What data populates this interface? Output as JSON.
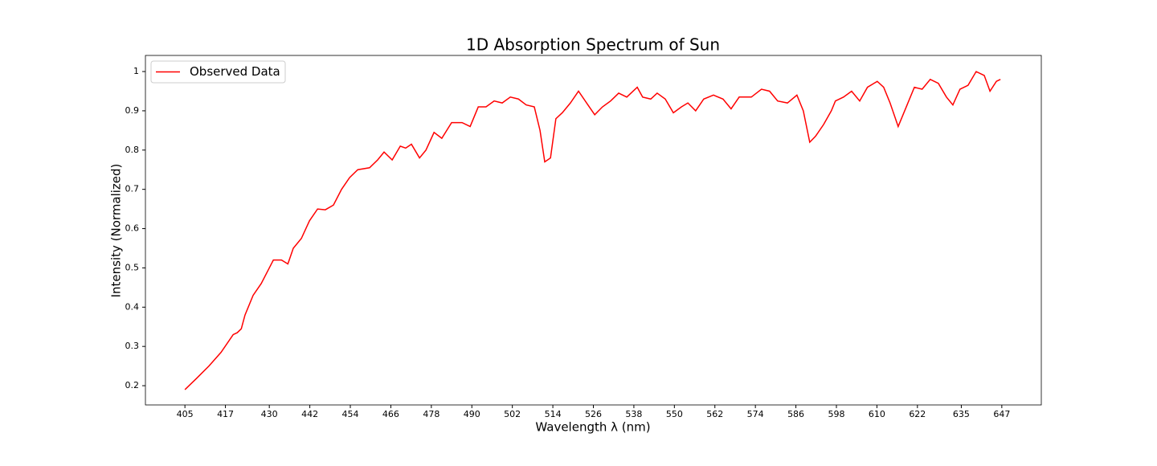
{
  "chart_data": {
    "type": "line",
    "title": "1D Absorption Spectrum of Sun",
    "xlabel": "Wavelength λ (nm)",
    "ylabel": "Intensity (Normalized)",
    "x": [
      405,
      408.6,
      412.1,
      415.7,
      419.3,
      420.5,
      421.7,
      422.8,
      425.2,
      427.6,
      430,
      431.2,
      433.6,
      435.5,
      437.1,
      439.5,
      441.9,
      444.3,
      446.6,
      449,
      451.4,
      453.8,
      456.2,
      459.7,
      462.1,
      464,
      466.4,
      468.8,
      470.4,
      472.1,
      474.5,
      476.4,
      478.8,
      481.1,
      484,
      487.1,
      489.5,
      491.9,
      494.2,
      496.6,
      499,
      501.4,
      503.8,
      506.1,
      508.5,
      510.2,
      511.6,
      513.3,
      514.9,
      516.8,
      519.2,
      521.6,
      524,
      526.4,
      528.7,
      531.1,
      533.5,
      535.9,
      539,
      540.6,
      543,
      544.9,
      547.3,
      549.7,
      552.1,
      554,
      556.3,
      558.7,
      561.6,
      564.4,
      566.8,
      569.2,
      572.8,
      575.8,
      578.2,
      580.6,
      583.5,
      586.3,
      588.2,
      590.1,
      591.8,
      594.2,
      596.5,
      597.7,
      600.1,
      602.5,
      604.9,
      607.2,
      610.1,
      612,
      613.9,
      616.3,
      618.7,
      621.1,
      623.4,
      625.8,
      628.2,
      630.6,
      632.5,
      634.6,
      637,
      639.4,
      641.8,
      643.5,
      645.4,
      646.6
    ],
    "series": [
      {
        "name": "Observed Data",
        "color": "#ff0000",
        "values": [
          0.19,
          0.22,
          0.25,
          0.285,
          0.33,
          0.335,
          0.345,
          0.38,
          0.43,
          0.46,
          0.5,
          0.52,
          0.52,
          0.51,
          0.55,
          0.575,
          0.62,
          0.65,
          0.648,
          0.66,
          0.7,
          0.73,
          0.75,
          0.755,
          0.775,
          0.795,
          0.775,
          0.81,
          0.805,
          0.815,
          0.78,
          0.8,
          0.845,
          0.83,
          0.87,
          0.87,
          0.86,
          0.91,
          0.91,
          0.925,
          0.92,
          0.935,
          0.93,
          0.915,
          0.91,
          0.85,
          0.77,
          0.78,
          0.88,
          0.895,
          0.92,
          0.95,
          0.92,
          0.89,
          0.91,
          0.925,
          0.945,
          0.935,
          0.96,
          0.935,
          0.93,
          0.945,
          0.93,
          0.895,
          0.91,
          0.92,
          0.9,
          0.93,
          0.94,
          0.93,
          0.905,
          0.935,
          0.935,
          0.955,
          0.95,
          0.925,
          0.92,
          0.94,
          0.9,
          0.82,
          0.835,
          0.865,
          0.9,
          0.925,
          0.935,
          0.95,
          0.925,
          0.96,
          0.975,
          0.96,
          0.92,
          0.86,
          0.91,
          0.96,
          0.955,
          0.98,
          0.97,
          0.935,
          0.915,
          0.955,
          0.965,
          1.0,
          0.99,
          0.95,
          0.975,
          0.98
        ]
      }
    ],
    "xlim": [
      393.3,
      658.7
    ],
    "ylim": [
      0.151,
      1.041
    ],
    "xticks": [
      405,
      417,
      430,
      442,
      454,
      466,
      478,
      490,
      502,
      514,
      526,
      538,
      550,
      562,
      574,
      586,
      598,
      610,
      622,
      635,
      647
    ],
    "yticks": [
      0.2,
      0.3,
      0.4,
      0.5,
      0.6,
      0.7,
      0.8,
      0.9,
      1.0
    ],
    "legend": "upper left"
  }
}
